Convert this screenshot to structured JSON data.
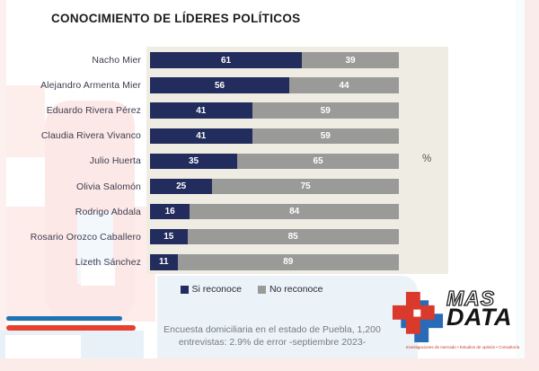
{
  "title": "CONOCIMIENTO DE LÍDERES POLÍTICOS",
  "unit_label": "%",
  "chart_data": {
    "type": "bar",
    "orientation": "horizontal",
    "stacked": true,
    "title": "CONOCIMIENTO DE LÍDERES POLÍTICOS",
    "unit_label": "%",
    "xlim": [
      0,
      100
    ],
    "grid": false,
    "legend_position": "bottom",
    "plot_background": "#efede3",
    "categories": [
      "Nacho Mier",
      "Alejandro Armenta Mier",
      "Eduardo Rivera Pérez",
      "Claudia Rivera Vivanco",
      "Julio Huerta",
      "Olivia Salomón",
      "Rodrigo Abdala",
      "Rosario Orozco Caballero",
      "Lizeth Sánchez"
    ],
    "series": [
      {
        "name": "Si reconoce",
        "color": "#222c5d",
        "values": [
          61,
          56,
          41,
          41,
          35,
          25,
          16,
          15,
          11
        ]
      },
      {
        "name": "No reconoce",
        "color": "#9a9a98",
        "values": [
          39,
          44,
          59,
          59,
          65,
          75,
          84,
          85,
          89
        ]
      }
    ]
  },
  "legend": {
    "items": [
      {
        "label": "Si reconoce",
        "color": "#222c5d"
      },
      {
        "label": "No reconoce",
        "color": "#9a9a98"
      }
    ]
  },
  "footnote": {
    "line1": "Encuesta domiciliaria en el estado de Puebla, 1,200",
    "line2": "entrevistas: 2.9% de error -septiembre 2023-"
  },
  "logo": {
    "mas": "MAS",
    "data": "DATA",
    "tagline": "Investigaciones de mercado • Estudios de opinión • Consultoría",
    "red": "#d93a2b",
    "blue": "#2a6bb7"
  },
  "colors": {
    "si_bar": "#222c5d",
    "no_bar": "#9a9a98",
    "plot_bg": "#efede3",
    "accent_red": "#e8402f",
    "accent_blue": "#1d73b4",
    "pink_soft": "#fce9e7",
    "blue_soft": "#ebf3f9"
  }
}
